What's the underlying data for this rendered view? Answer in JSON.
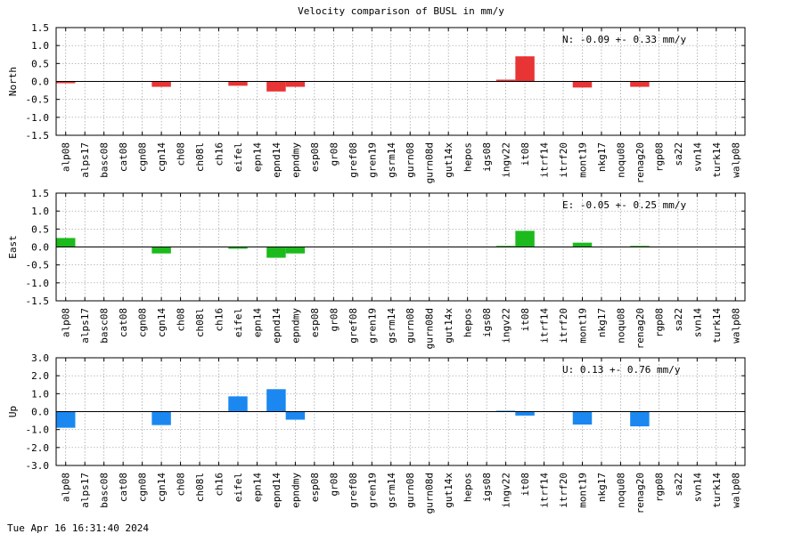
{
  "title": "Velocity comparison of BUSL in mm/y",
  "timestamp": "Tue Apr 16 16:31:40 2024",
  "stations": [
    "alp08",
    "alps17",
    "basc08",
    "cat08",
    "cgn08",
    "cgn14",
    "ch08",
    "ch08l",
    "ch16",
    "eifel",
    "epn14",
    "epnd14",
    "epndmy",
    "esp08",
    "gr08",
    "gref08",
    "gren19",
    "gsrm14",
    "gurn08",
    "gurn08d",
    "gut14x",
    "hepos",
    "igs08",
    "ingv22",
    "it08",
    "itrf14",
    "itrf20",
    "mont19",
    "nkg17",
    "noqu08",
    "renag20",
    "rgp08",
    "sa22",
    "svn14",
    "turk14",
    "walp08"
  ],
  "chart_data": [
    {
      "type": "bar",
      "ylabel": "North",
      "ylim": [
        -1.5,
        1.5
      ],
      "yticks": [
        "1.5",
        "1.0",
        "0.5",
        "0.0",
        "-0.5",
        "-1.0",
        "-1.5"
      ],
      "ytick_values": [
        1.5,
        1.0,
        0.5,
        0.0,
        -0.5,
        -1.0,
        -1.5
      ],
      "grid": true,
      "color": "#e83434",
      "annotation": "N:  -0.09 +-  0.33 mm/y",
      "values": [
        -0.05,
        0,
        0,
        0,
        0,
        -0.15,
        0,
        0,
        0,
        -0.12,
        0,
        -0.28,
        -0.15,
        0,
        0,
        0,
        0,
        0,
        0,
        0,
        0,
        0,
        0,
        0.05,
        0.7,
        0,
        0,
        -0.17,
        0,
        0,
        -0.15,
        0,
        0,
        0,
        0,
        0
      ]
    },
    {
      "type": "bar",
      "ylabel": "East",
      "ylim": [
        -1.5,
        1.5
      ],
      "yticks": [
        "1.5",
        "1.0",
        "0.5",
        "0.0",
        "-0.5",
        "-1.0",
        "-1.5"
      ],
      "ytick_values": [
        1.5,
        1.0,
        0.5,
        0.0,
        -0.5,
        -1.0,
        -1.5
      ],
      "grid": true,
      "color": "#1cba1c",
      "annotation": "E:  -0.05 +-  0.25 mm/y",
      "values": [
        0.25,
        0,
        0,
        0,
        0,
        -0.18,
        0,
        0,
        0,
        -0.05,
        0,
        -0.3,
        -0.18,
        0,
        0,
        0,
        0,
        0,
        0,
        0,
        0,
        0,
        0,
        0.03,
        0.45,
        0,
        0,
        0.12,
        0,
        0,
        0.03,
        0,
        0,
        0,
        0,
        0
      ]
    },
    {
      "type": "bar",
      "ylabel": "Up",
      "ylim": [
        -3.0,
        3.0
      ],
      "yticks": [
        "3.0",
        "2.0",
        "1.0",
        "0.0",
        "-1.0",
        "-2.0",
        "-3.0"
      ],
      "ytick_values": [
        3.0,
        2.0,
        1.0,
        0.0,
        -1.0,
        -2.0,
        -3.0
      ],
      "grid": true,
      "color": "#1a88f0",
      "annotation": "U:   0.13 +-  0.76 mm/y",
      "values": [
        -0.9,
        0,
        0,
        0,
        0,
        -0.75,
        0,
        0,
        0,
        0.85,
        0,
        1.25,
        -0.45,
        0,
        0,
        0,
        0,
        0,
        0,
        0,
        0,
        0,
        0,
        0.05,
        -0.22,
        0,
        0,
        -0.72,
        0,
        0,
        -0.82,
        0,
        0,
        0,
        0,
        0
      ]
    }
  ]
}
